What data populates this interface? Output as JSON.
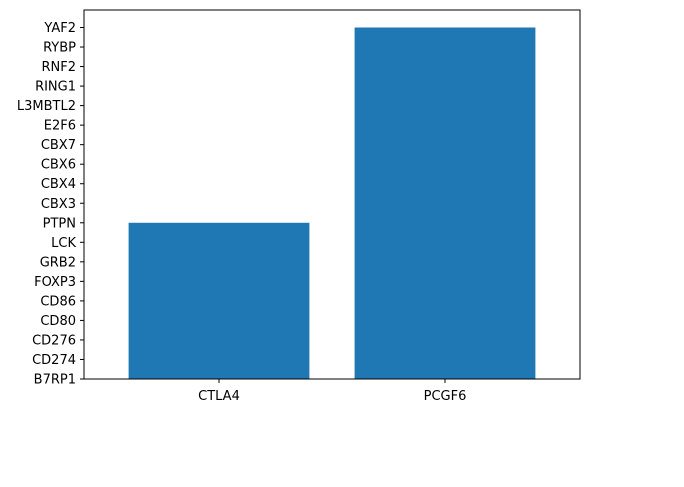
{
  "chart_data": {
    "type": "bar",
    "categories": [
      "CTLA4",
      "PCGF6"
    ],
    "values": [
      "PTPN",
      "YAF2"
    ],
    "y_ticks": [
      "B7RP1",
      "CD274",
      "CD276",
      "CD80",
      "CD86",
      "FOXP3",
      "GRB2",
      "LCK",
      "PTPN",
      "CBX3",
      "CBX4",
      "CBX6",
      "CBX7",
      "E2F6",
      "L3MBTL2",
      "RING1",
      "RNF2",
      "RYBP",
      "YAF2"
    ],
    "title": "",
    "xlabel": "",
    "ylabel": "",
    "grid": false,
    "bar_color": "#1f77b4"
  }
}
